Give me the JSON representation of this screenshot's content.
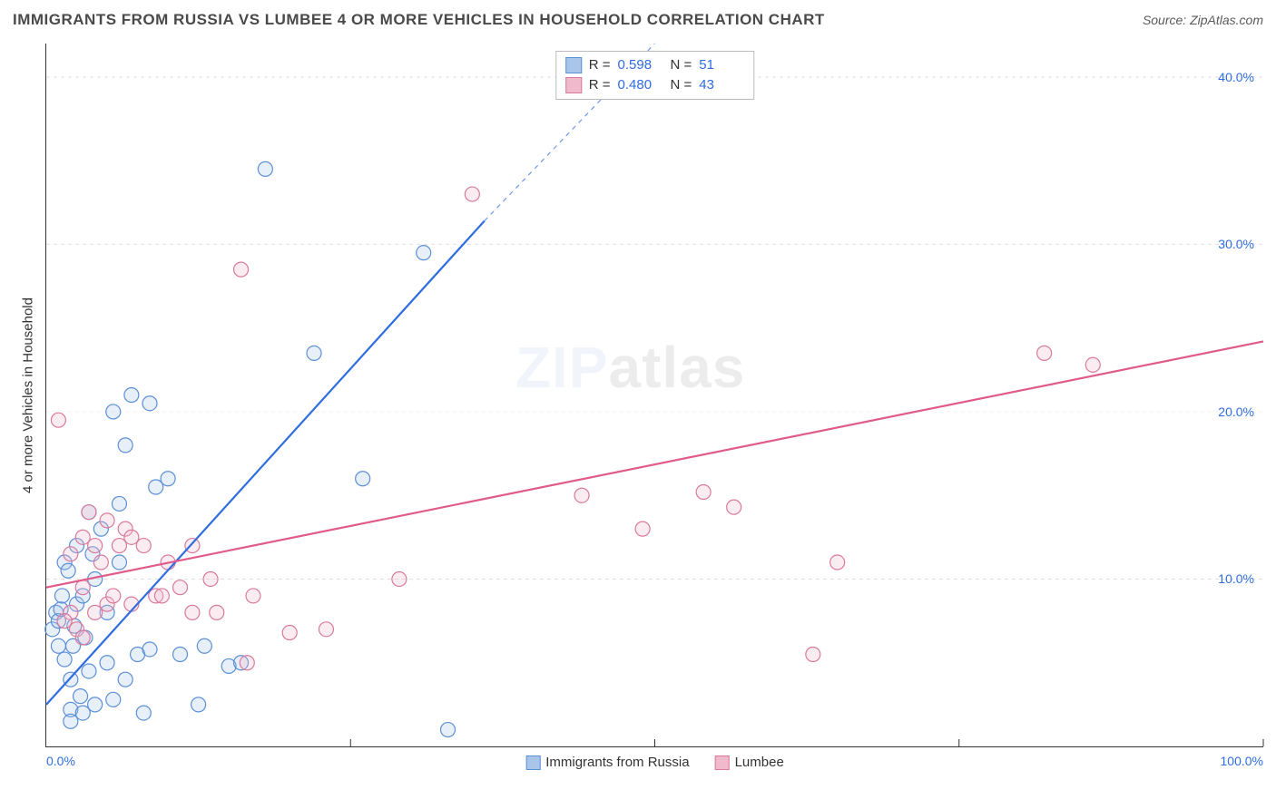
{
  "title": "IMMIGRANTS FROM RUSSIA VS LUMBEE 4 OR MORE VEHICLES IN HOUSEHOLD CORRELATION CHART",
  "source_prefix": "Source: ",
  "source_name": "ZipAtlas.com",
  "ylabel": "4 or more Vehicles in Household",
  "watermark_a": "ZIP",
  "watermark_b": "atlas",
  "chart": {
    "type": "scatter",
    "background_color": "#ffffff",
    "grid_color": "#e0e0e0",
    "axis_color": "#333333",
    "tick_label_color": "#2f6de0",
    "xlim": [
      0,
      100
    ],
    "ylim": [
      0,
      42
    ],
    "x_gridlines": [
      25,
      50,
      75,
      100
    ],
    "y_gridlines": [
      10,
      20,
      30,
      40
    ],
    "y_gridlines_visible": [
      10,
      30,
      40
    ],
    "x_tick_labels": [
      {
        "v": 0,
        "text": "0.0%",
        "align": "left"
      },
      {
        "v": 100,
        "text": "100.0%",
        "align": "right"
      }
    ],
    "y_tick_labels": [
      {
        "v": 10,
        "text": "10.0%"
      },
      {
        "v": 20,
        "text": "20.0%"
      },
      {
        "v": 30,
        "text": "30.0%"
      },
      {
        "v": 40,
        "text": "40.0%"
      }
    ],
    "marker_radius": 8,
    "marker_stroke_width": 1.2,
    "marker_fill_opacity": 0.28,
    "trend_line_width": 2.2,
    "series": [
      {
        "key": "russia",
        "label": "Immigrants from Russia",
        "stroke": "#5b8fd6",
        "fill": "#a9c6ea",
        "line_color": "#2f6de0",
        "R_label": "R  =",
        "R": "0.598",
        "N_label": "N  =",
        "N": "51",
        "trend": {
          "x1": 0,
          "y1": 2.5,
          "x2_solid": 36,
          "y2_solid": 31.4,
          "x2_dash": 50,
          "y2_dash": 42
        },
        "points": [
          [
            0.5,
            7.0
          ],
          [
            0.8,
            8.0
          ],
          [
            1.0,
            7.5
          ],
          [
            1.0,
            6.0
          ],
          [
            1.2,
            8.2
          ],
          [
            1.3,
            9.0
          ],
          [
            1.5,
            5.2
          ],
          [
            1.5,
            11.0
          ],
          [
            1.8,
            10.5
          ],
          [
            2.0,
            4.0
          ],
          [
            2.0,
            2.2
          ],
          [
            2.2,
            6.0
          ],
          [
            2.3,
            7.2
          ],
          [
            2.5,
            12.0
          ],
          [
            2.5,
            8.5
          ],
          [
            2.8,
            3.0
          ],
          [
            3.0,
            9.0
          ],
          [
            3.0,
            2.0
          ],
          [
            3.2,
            6.5
          ],
          [
            3.5,
            14.0
          ],
          [
            3.5,
            4.5
          ],
          [
            3.8,
            11.5
          ],
          [
            4.0,
            2.5
          ],
          [
            4.0,
            10.0
          ],
          [
            4.5,
            13.0
          ],
          [
            5.0,
            5.0
          ],
          [
            5.0,
            8.0
          ],
          [
            5.5,
            20.0
          ],
          [
            5.5,
            2.8
          ],
          [
            6.0,
            11.0
          ],
          [
            6.0,
            14.5
          ],
          [
            6.5,
            4.0
          ],
          [
            6.5,
            18.0
          ],
          [
            7.0,
            21.0
          ],
          [
            7.5,
            5.5
          ],
          [
            8.0,
            2.0
          ],
          [
            8.5,
            5.8
          ],
          [
            8.5,
            20.5
          ],
          [
            9.0,
            15.5
          ],
          [
            10.0,
            16.0
          ],
          [
            11.0,
            5.5
          ],
          [
            12.5,
            2.5
          ],
          [
            13.0,
            6.0
          ],
          [
            15.0,
            4.8
          ],
          [
            16.0,
            5.0
          ],
          [
            18.0,
            34.5
          ],
          [
            22.0,
            23.5
          ],
          [
            26.0,
            16.0
          ],
          [
            31.0,
            29.5
          ],
          [
            33.0,
            1.0
          ],
          [
            2.0,
            1.5
          ]
        ]
      },
      {
        "key": "lumbee",
        "label": "Lumbee",
        "stroke": "#d97a9c",
        "fill": "#f0b9cc",
        "line_color": "#e05a8a",
        "R_label": "R  =",
        "R": "0.480",
        "N_label": "N  =",
        "N": "43",
        "trend": {
          "x1": 0,
          "y1": 9.5,
          "x2_solid": 100,
          "y2_solid": 24.2,
          "x2_dash": 100,
          "y2_dash": 24.2
        },
        "points": [
          [
            1.0,
            19.5
          ],
          [
            2.0,
            8.0
          ],
          [
            2.0,
            11.5
          ],
          [
            2.5,
            7.0
          ],
          [
            3.0,
            12.5
          ],
          [
            3.0,
            9.5
          ],
          [
            3.5,
            14.0
          ],
          [
            4.0,
            12.0
          ],
          [
            4.0,
            8.0
          ],
          [
            4.5,
            11.0
          ],
          [
            5.0,
            13.5
          ],
          [
            5.0,
            8.5
          ],
          [
            5.5,
            9.0
          ],
          [
            6.0,
            12.0
          ],
          [
            6.5,
            13.0
          ],
          [
            7.0,
            12.5
          ],
          [
            7.0,
            8.5
          ],
          [
            8.0,
            12.0
          ],
          [
            9.0,
            9.0
          ],
          [
            9.5,
            9.0
          ],
          [
            10.0,
            11.0
          ],
          [
            11.0,
            9.5
          ],
          [
            12.0,
            12.0
          ],
          [
            12.0,
            8.0
          ],
          [
            13.5,
            10.0
          ],
          [
            14.0,
            8.0
          ],
          [
            16.0,
            28.5
          ],
          [
            16.5,
            5.0
          ],
          [
            17.0,
            9.0
          ],
          [
            20.0,
            6.8
          ],
          [
            23.0,
            7.0
          ],
          [
            29.0,
            10.0
          ],
          [
            35.0,
            33.0
          ],
          [
            44.0,
            15.0
          ],
          [
            49.0,
            13.0
          ],
          [
            54.0,
            15.2
          ],
          [
            56.5,
            14.3
          ],
          [
            63.0,
            5.5
          ],
          [
            65.0,
            11.0
          ],
          [
            82.0,
            23.5
          ],
          [
            86.0,
            22.8
          ],
          [
            3.0,
            6.5
          ],
          [
            1.5,
            7.5
          ]
        ]
      }
    ]
  }
}
